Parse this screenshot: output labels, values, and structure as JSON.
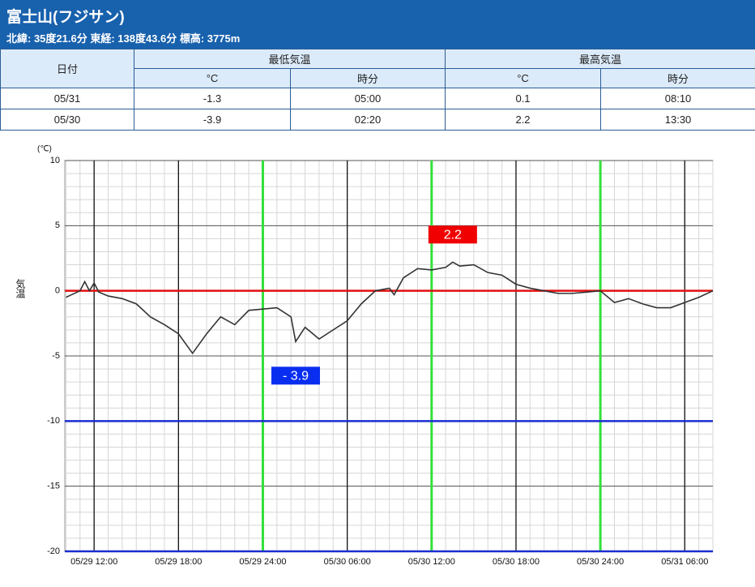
{
  "header": {
    "title": "富士山(フジサン)",
    "subtitle": "北緯: 35度21.6分 東経: 138度43.6分 標高: 3775m"
  },
  "table": {
    "header": [
      "日付",
      "最低気温",
      "最高気温"
    ],
    "subheader": [
      "°C",
      "時分",
      "°C",
      "時分"
    ],
    "rows": [
      [
        "05/31",
        "-1.3",
        "05:00",
        "0.1",
        "08:10"
      ],
      [
        "05/30",
        "-3.9",
        "02:20",
        "2.2",
        "13:30"
      ]
    ]
  },
  "chart_data": {
    "type": "line",
    "y_unit": "(℃)",
    "ylabel": "気温",
    "x": [
      "05/29 10:00",
      "05/29 11:00",
      "05/29 11:20",
      "05/29 11:40",
      "05/29 12:00",
      "05/29 12:20",
      "05/29 13:00",
      "05/29 14:00",
      "05/29 15:00",
      "05/29 16:00",
      "05/29 17:00",
      "05/29 18:00",
      "05/29 19:00",
      "05/29 20:00",
      "05/29 21:00",
      "05/29 22:00",
      "05/29 23:00",
      "05/29 24:00",
      "05/30 01:00",
      "05/30 02:00",
      "05/30 02:20",
      "05/30 03:00",
      "05/30 04:00",
      "05/30 05:00",
      "05/30 06:00",
      "05/30 07:00",
      "05/30 08:00",
      "05/30 09:00",
      "05/30 09:20",
      "05/30 10:00",
      "05/30 11:00",
      "05/30 12:00",
      "05/30 13:00",
      "05/30 13:30",
      "05/30 14:00",
      "05/30 15:00",
      "05/30 16:00",
      "05/30 17:00",
      "05/30 18:00",
      "05/30 19:00",
      "05/30 20:00",
      "05/30 21:00",
      "05/30 22:00",
      "05/30 23:00",
      "05/30 24:00",
      "05/31 01:00",
      "05/31 02:00",
      "05/31 03:00",
      "05/31 04:00",
      "05/31 05:00",
      "05/31 06:00",
      "05/31 07:00",
      "05/31 08:00"
    ],
    "series": [
      {
        "name": "気温",
        "color": "#333333",
        "values": [
          -0.5,
          0.0,
          0.7,
          0.0,
          0.6,
          -0.1,
          -0.4,
          -0.6,
          -1.0,
          -2.0,
          -2.6,
          -3.3,
          -4.8,
          -3.3,
          -2.0,
          -2.6,
          -1.5,
          -1.4,
          -1.3,
          -2.0,
          -3.9,
          -2.8,
          -3.7,
          -3.0,
          -2.3,
          -1.0,
          0.0,
          0.2,
          -0.3,
          1.0,
          1.7,
          1.6,
          1.8,
          2.2,
          1.9,
          2.0,
          1.4,
          1.2,
          0.5,
          0.2,
          0.0,
          -0.2,
          -0.2,
          -0.1,
          0.0,
          -0.9,
          -0.6,
          -1.0,
          -1.3,
          -1.3,
          -0.9,
          -0.5,
          0.0
        ]
      }
    ],
    "xlim": [
      "05/29 09:55",
      "05/31 08:00"
    ],
    "xticks": [
      "05/29 12:00",
      "05/29 18:00",
      "05/29 24:00",
      "05/30 06:00",
      "05/30 12:00",
      "05/30 18:00",
      "05/30 24:00",
      "05/31 06:00"
    ],
    "highlight_x": [
      "05/29 24:00",
      "05/30 12:00",
      "05/30 24:00"
    ],
    "highlight_color": "#33e03a",
    "ylim": [
      -20,
      10
    ],
    "yticks": [
      10,
      5,
      0,
      -5,
      -10,
      -15,
      -20
    ],
    "grid": true,
    "reference_lines": [
      {
        "value": 0,
        "color": "#e01010"
      },
      {
        "value": -10,
        "color": "#1a2ed0"
      },
      {
        "value": -20,
        "color": "#1a2ed0"
      }
    ],
    "annotations": [
      {
        "text": "2.2",
        "x": "05/30 13:30",
        "y": 2.2,
        "color": "#f00000"
      },
      {
        "text": "- 3.9",
        "x": "05/30 02:20",
        "y": -3.9,
        "color": "#0a2ef0"
      }
    ]
  }
}
